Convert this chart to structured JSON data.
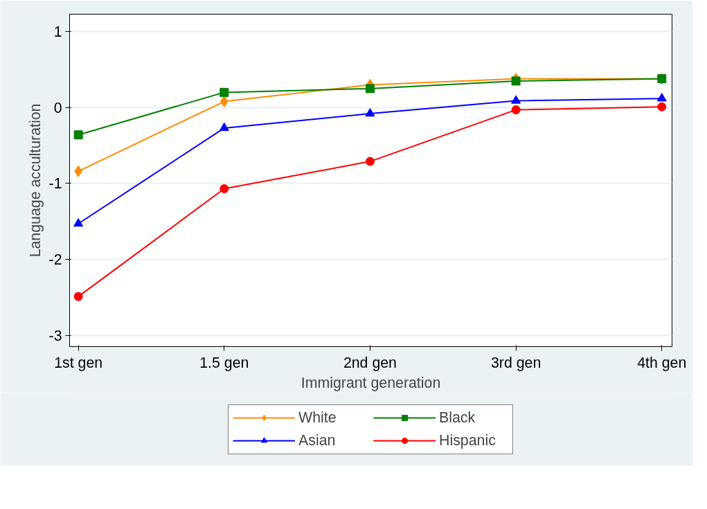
{
  "chart_data": {
    "type": "line",
    "xlabel": "Immigrant generation",
    "ylabel": "Language acculturation",
    "categories": [
      "1st gen",
      "1.5 gen",
      "2nd gen",
      "3rd gen",
      "4th gen"
    ],
    "ylim": [
      -3.15,
      1.23
    ],
    "yticks": [
      -3,
      -2,
      -1,
      0,
      1
    ],
    "grid": "y",
    "legend": "bottom",
    "line_style": "solid",
    "series": [
      {
        "name": "White",
        "color": "#ff8c00",
        "marker": "diamond",
        "values": [
          -0.84,
          0.08,
          0.3,
          0.38,
          0.38
        ]
      },
      {
        "name": "Black",
        "color": "#008000",
        "marker": "square",
        "values": [
          -0.36,
          0.2,
          0.25,
          0.35,
          0.38
        ]
      },
      {
        "name": "Asian",
        "color": "#0000ff",
        "marker": "triangle",
        "values": [
          -1.53,
          -0.27,
          -0.08,
          0.09,
          0.12
        ]
      },
      {
        "name": "Hispanic",
        "color": "#ff0000",
        "marker": "circle",
        "values": [
          -2.49,
          -1.07,
          -0.71,
          -0.03,
          0.01
        ]
      }
    ]
  }
}
